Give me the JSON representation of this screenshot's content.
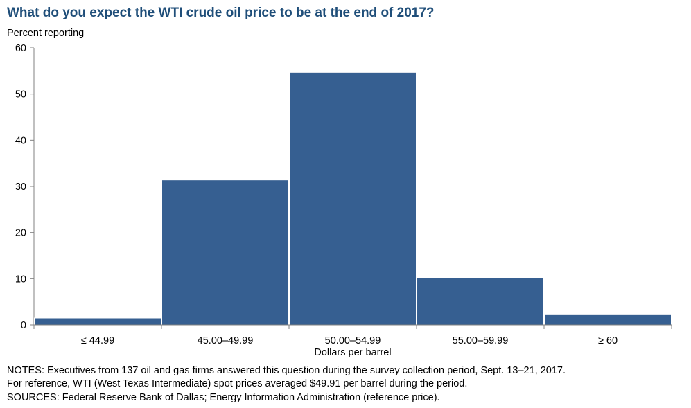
{
  "chart_data": {
    "type": "bar",
    "title": "What do you expect the WTI crude oil price to be at the end of 2017?",
    "ylabel": "Percent reporting",
    "xlabel": "Dollars per barrel",
    "categories": [
      "≤ 44.99",
      "45.00–49.99",
      "50.00–54.99",
      "55.00–59.99",
      "≥ 60"
    ],
    "values": [
      1.5,
      31.4,
      54.7,
      10.2,
      2.2
    ],
    "ylim": [
      0,
      60
    ],
    "yticks": [
      0,
      10,
      20,
      30,
      40,
      50,
      60
    ],
    "bar_color": "#365f91",
    "grid": false
  },
  "notes": {
    "line1": "NOTES: Executives from 137 oil and gas firms answered this question during the survey collection period, Sept. 13–21, 2017.",
    "line2": "For reference, WTI (West Texas Intermediate) spot prices averaged $49.91 per barrel during the period.",
    "line3": "SOURCES: Federal Reserve Bank of Dallas; Energy Information Administration (reference price)."
  }
}
